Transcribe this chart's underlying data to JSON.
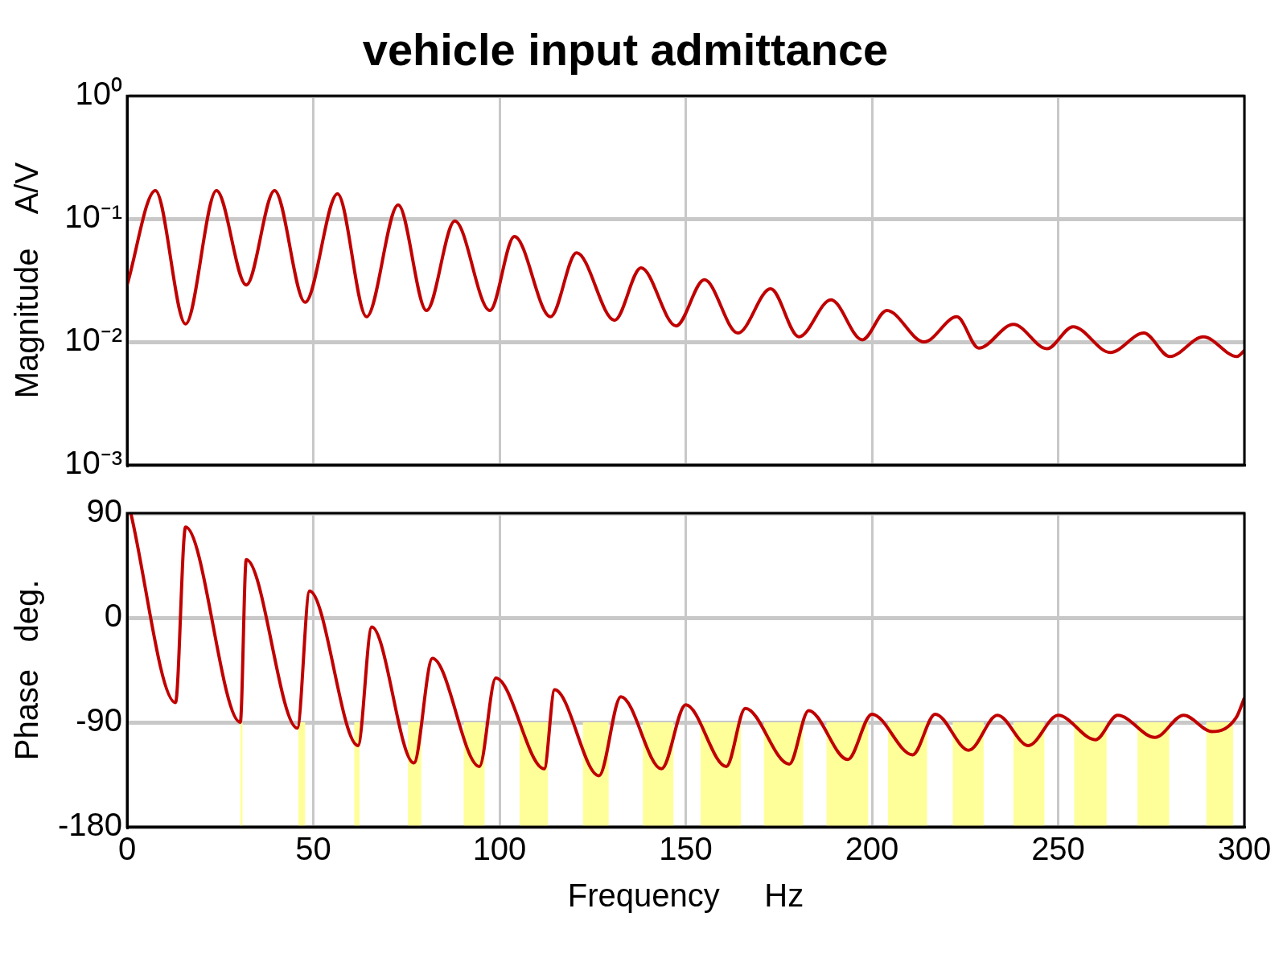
{
  "chart_data": [
    {
      "type": "line",
      "title": "vehicle input admittance",
      "ylabel": "Magnitude    A/V",
      "log": "y",
      "grid": true,
      "legend": false,
      "marker": "none",
      "line_style": "solid",
      "tick_labels": "y",
      "xlim": [
        0,
        300
      ],
      "xticks": [
        0,
        50,
        100,
        150,
        200,
        250,
        300
      ],
      "ylim": [
        0.001,
        1
      ],
      "yticks": [
        {
          "value": 0.001,
          "label": "10⁻³"
        },
        {
          "value": 0.01,
          "label": "10⁻²"
        },
        {
          "value": 0.1,
          "label": "10⁻¹"
        },
        {
          "value": 1,
          "label": "10⁰"
        }
      ],
      "series": [
        {
          "color": "#c00000",
          "x": [
            0,
            7.6,
            15.7,
            24,
            32,
            39.6,
            47.8,
            56.5,
            64.3,
            72.8,
            80.4,
            88,
            97.4,
            104,
            113.7,
            120.7,
            130.9,
            138,
            147.4,
            155,
            164,
            172.8,
            180.4,
            189,
            197.4,
            204,
            214,
            222.8,
            228.7,
            238,
            247,
            254,
            264,
            273,
            280,
            289,
            298,
            300
          ],
          "values": [
            0.029,
            0.17,
            0.014,
            0.17,
            0.029,
            0.17,
            0.021,
            0.16,
            0.016,
            0.13,
            0.018,
            0.096,
            0.018,
            0.072,
            0.016,
            0.053,
            0.015,
            0.04,
            0.0135,
            0.032,
            0.0118,
            0.027,
            0.011,
            0.022,
            0.0104,
            0.018,
            0.01,
            0.016,
            0.0089,
            0.0139,
            0.0088,
            0.0133,
            0.0082,
            0.0118,
            0.0076,
            0.011,
            0.0076,
            0.0085
          ]
        }
      ]
    },
    {
      "type": "line",
      "ylabel": "Phase   deg.",
      "xlabel": "Frequency     Hz",
      "grid": true,
      "legend": false,
      "marker": "none",
      "line_style": "solid",
      "xlim": [
        0,
        300
      ],
      "xticks": [
        0,
        50,
        100,
        150,
        200,
        250,
        300
      ],
      "ylim": [
        -180,
        90
      ],
      "yticks": [
        -180,
        -90,
        0,
        90
      ],
      "series": [
        {
          "color": "#c00000",
          "x": [
            1,
            13,
            15.7,
            30.4,
            32,
            45.7,
            49,
            62,
            65.7,
            77,
            82,
            94.6,
            99,
            112,
            114.8,
            126.7,
            132.6,
            143.5,
            150,
            160.9,
            166,
            177.8,
            183,
            193.5,
            200,
            210.9,
            217,
            226,
            233.7,
            242,
            250,
            260,
            266,
            276,
            283.7,
            291.3,
            297.8,
            300
          ],
          "values": [
            90,
            -73,
            78,
            -90,
            50,
            -95,
            23,
            -110,
            -8,
            -125,
            -35,
            -128,
            -52,
            -130,
            -62,
            -136,
            -68,
            -130,
            -75,
            -128,
            -78,
            -126,
            -80,
            -122,
            -83,
            -118,
            -83,
            -114,
            -84,
            -110,
            -84,
            -105,
            -84,
            -103,
            -84,
            -98,
            -86,
            -69
          ]
        }
      ],
      "bands": [
        {
          "axis": "x",
          "from": 30.4,
          "to": 31,
          "color": "#ffff99"
        },
        {
          "axis": "x",
          "from": 46,
          "to": 47.8,
          "color": "#ffff99"
        },
        {
          "axis": "x",
          "from": 61,
          "to": 62.4,
          "color": "#ffff99"
        },
        {
          "axis": "x",
          "from": 75.4,
          "to": 79,
          "color": "#ffff99"
        },
        {
          "axis": "x",
          "from": 90.4,
          "to": 96,
          "color": "#ffff99"
        },
        {
          "axis": "x",
          "from": 105.4,
          "to": 113,
          "color": "#ffff99"
        },
        {
          "axis": "x",
          "from": 122.4,
          "to": 129.3,
          "color": "#ffff99"
        },
        {
          "axis": "x",
          "from": 138.5,
          "to": 146.7,
          "color": "#ffff99"
        },
        {
          "axis": "x",
          "from": 154,
          "to": 164.8,
          "color": "#ffff99"
        },
        {
          "axis": "x",
          "from": 171,
          "to": 181.5,
          "color": "#ffff99"
        },
        {
          "axis": "x",
          "from": 187.8,
          "to": 199,
          "color": "#ffff99"
        },
        {
          "axis": "x",
          "from": 204.3,
          "to": 214.8,
          "color": "#ffff99"
        },
        {
          "axis": "x",
          "from": 221.7,
          "to": 230,
          "color": "#ffff99"
        },
        {
          "axis": "x",
          "from": 238,
          "to": 246.3,
          "color": "#ffff99"
        },
        {
          "axis": "x",
          "from": 254.3,
          "to": 263,
          "color": "#ffff99"
        },
        {
          "axis": "x",
          "from": 271.3,
          "to": 279.8,
          "color": "#ffff99"
        },
        {
          "axis": "x",
          "from": 289.8,
          "to": 297,
          "color": "#ffff99"
        }
      ]
    }
  ]
}
